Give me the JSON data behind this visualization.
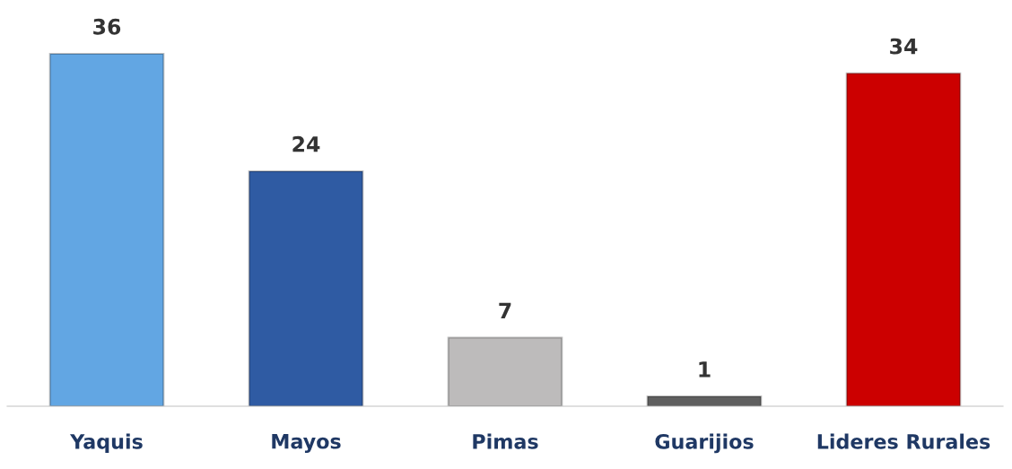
{
  "chart_data": {
    "type": "bar",
    "categories": [
      "Yaquis",
      "Mayos",
      "Pimas",
      "Guarijios",
      "Lideres Rurales"
    ],
    "values": [
      36,
      24,
      7,
      1,
      34
    ],
    "colors": [
      "#62a6e3",
      "#2f5ba3",
      "#bdbbbb",
      "#5f5f5f",
      "#cc0000"
    ],
    "data_labels": true,
    "tick_labels": "x",
    "grid": false,
    "legend": false
  }
}
